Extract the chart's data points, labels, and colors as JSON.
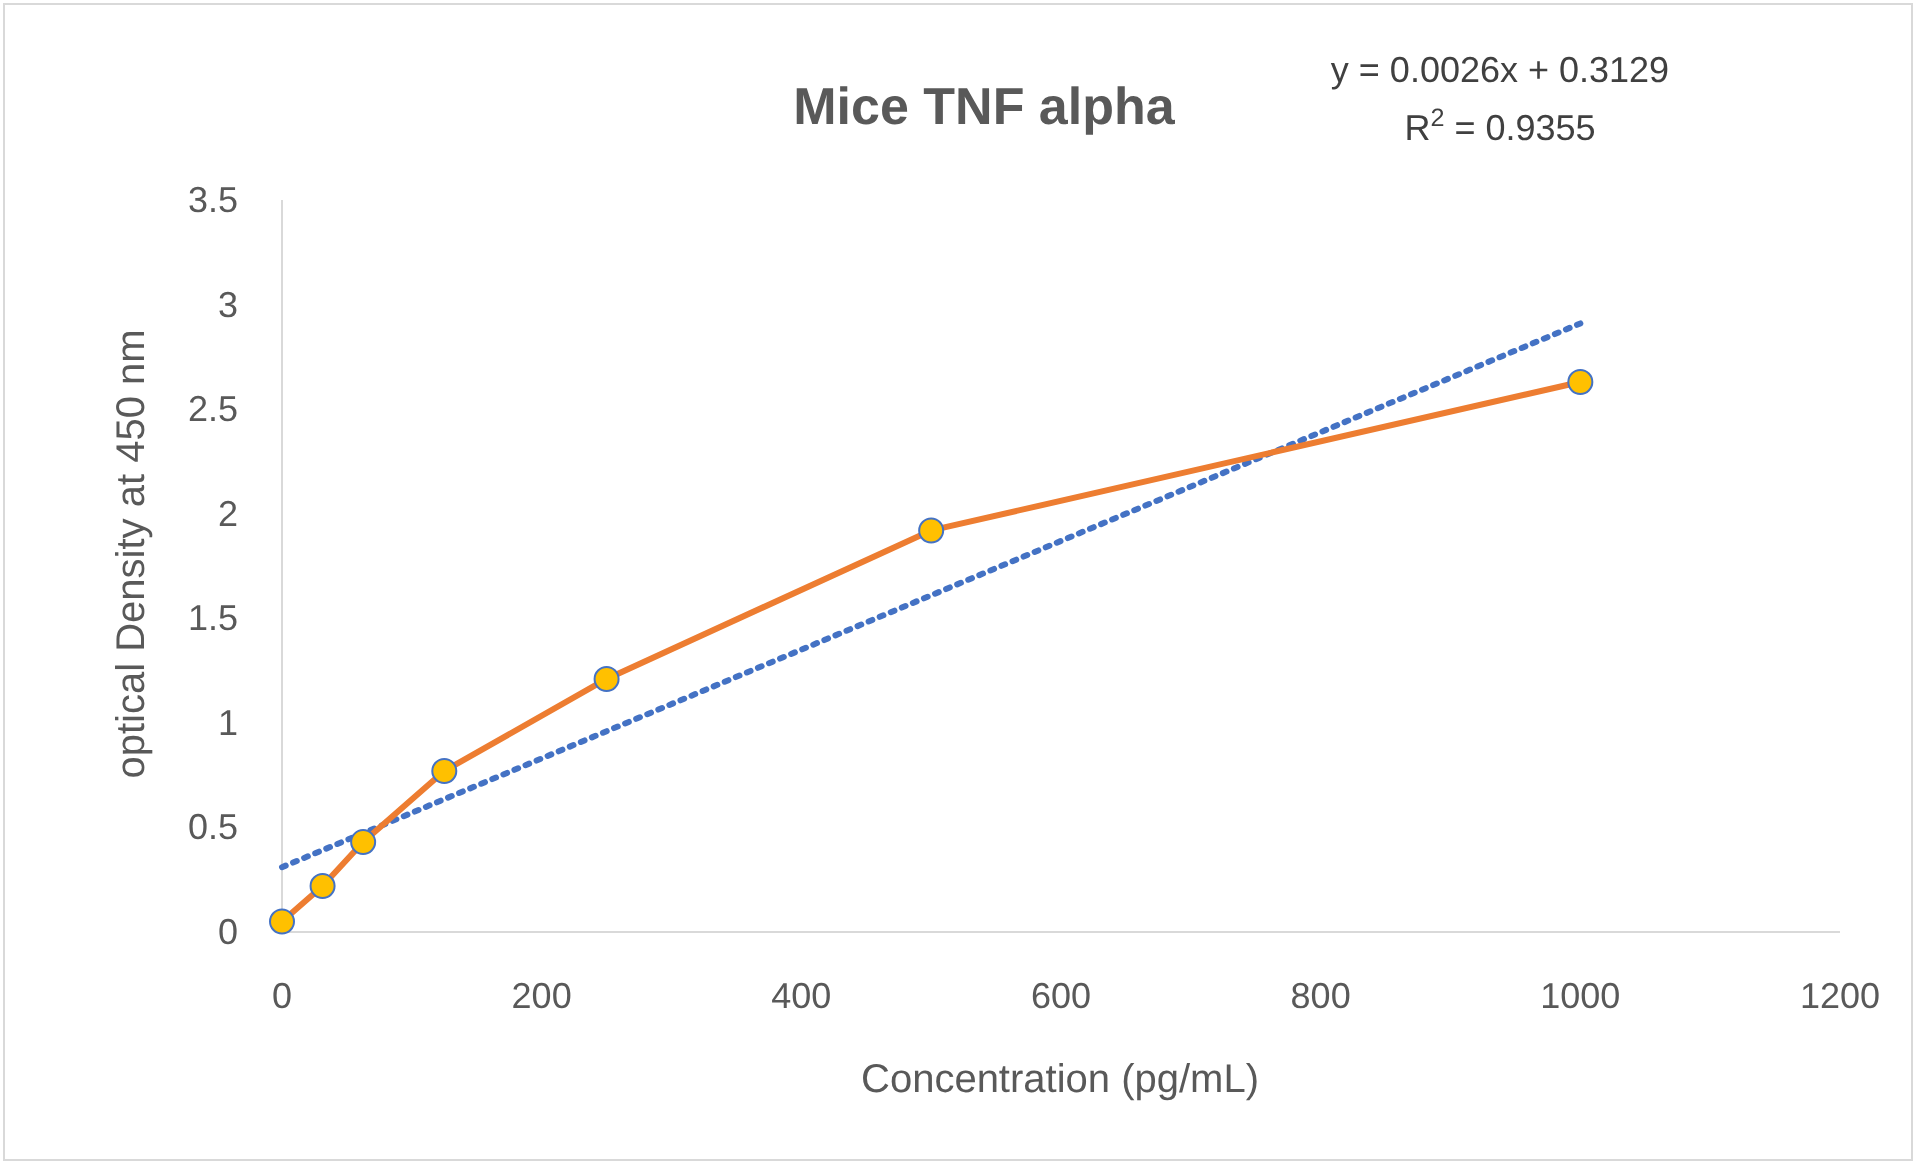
{
  "chart_data": {
    "type": "line",
    "title": "Mice TNF alpha",
    "xlabel": "Concentration (pg/mL)",
    "ylabel": "optical Density at 450 nm",
    "x": [
      0,
      31.25,
      62.5,
      125,
      250,
      500,
      1000
    ],
    "series": [
      {
        "color": "#ed7d31",
        "marker": "circle",
        "line_style": "solid",
        "values": [
          0.05,
          0.22,
          0.43,
          0.77,
          1.21,
          1.92,
          2.63
        ]
      },
      {
        "color": "#4472c4",
        "marker": "none",
        "line_style": "dotted",
        "x": [
          0,
          1000
        ],
        "values": [
          0.31,
          2.91
        ]
      }
    ],
    "xlim": [
      0,
      1200
    ],
    "xticks": [
      0,
      200,
      400,
      600,
      800,
      1000,
      1200
    ],
    "ylim": [
      0,
      3.5
    ],
    "yticks": [
      0,
      0.5,
      1,
      1.5,
      2,
      2.5,
      3,
      3.5
    ],
    "grid": false,
    "annotations": [
      "y = 0.0026x + 0.3129",
      "R$^{2}$ = 0.9355"
    ]
  }
}
